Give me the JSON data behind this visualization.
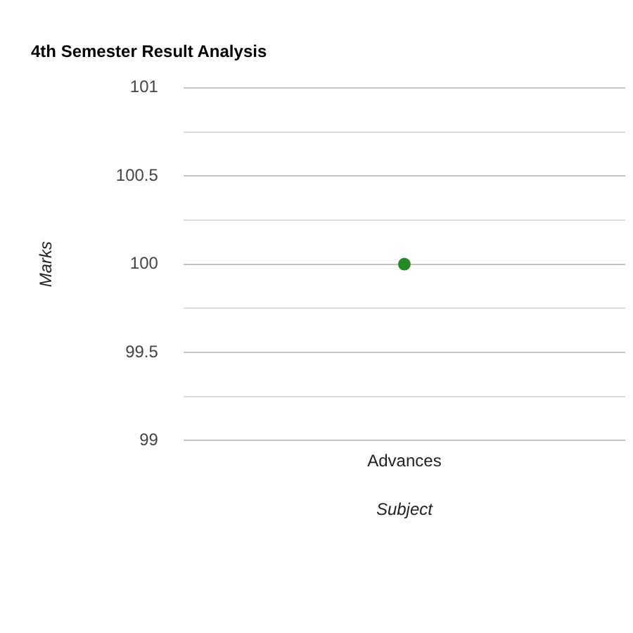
{
  "chart_data": {
    "type": "line",
    "title": "4th Semester Result Analysis",
    "xlabel": "Subject",
    "ylabel": "Marks",
    "categories": [
      "Advances"
    ],
    "series": [
      {
        "color": "#228b22",
        "values": [
          100
        ]
      }
    ],
    "ylim": [
      99,
      101
    ],
    "yticks": [
      99,
      {
        "value": 99.25,
        "label": null
      },
      99.5,
      {
        "value": 99.75,
        "label": null
      },
      100,
      {
        "value": 100.25,
        "label": null
      },
      100.5,
      {
        "value": 100.75,
        "label": null
      },
      101
    ],
    "grid": "y",
    "legend": false,
    "marker": "circle"
  }
}
